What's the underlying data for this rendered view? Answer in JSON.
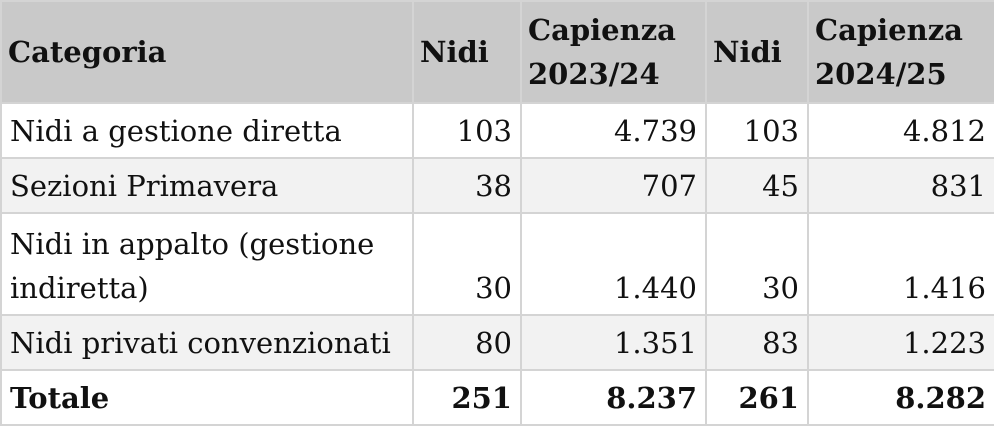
{
  "table": {
    "headers": [
      "Categoria",
      "Nidi",
      "Capienza 2023/24",
      "Nidi",
      "Capienza 2024/25"
    ],
    "rows": [
      [
        "Nidi a gestione diretta",
        "103",
        "4.739",
        "103",
        "4.812"
      ],
      [
        "Sezioni Primavera",
        "38",
        "707",
        "45",
        "831"
      ],
      [
        "Nidi in appalto (gestione indiretta)",
        "30",
        "1.440",
        "30",
        "1.416"
      ],
      [
        "Nidi privati convenzionati",
        "80",
        "1.351",
        "83",
        "1.223"
      ],
      [
        "Totale",
        "251",
        "8.237",
        "261",
        "8.282"
      ]
    ]
  }
}
